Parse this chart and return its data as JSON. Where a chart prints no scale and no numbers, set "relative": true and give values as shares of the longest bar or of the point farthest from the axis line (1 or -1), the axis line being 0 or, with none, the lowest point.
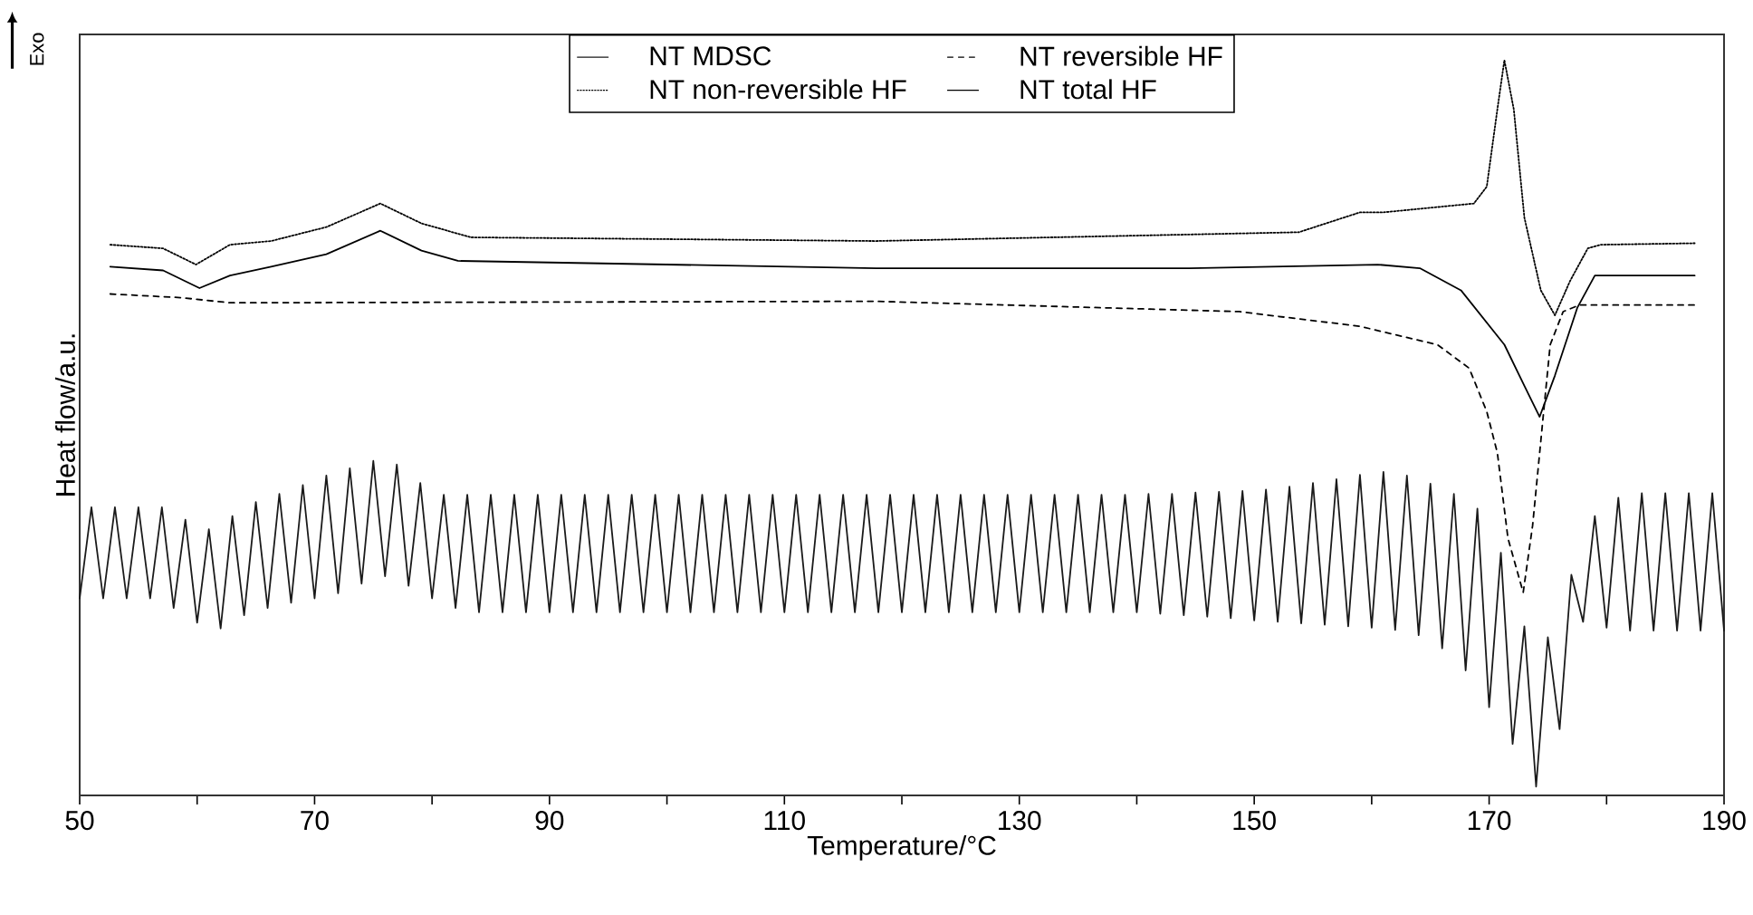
{
  "chart_data": {
    "type": "line",
    "relative": true,
    "xlabel": "Temperature/°C",
    "ylabel": "Heat flow/a.u.",
    "annotations": [
      "Exo"
    ],
    "xlim": [
      50,
      190
    ],
    "xticks": [
      50,
      {
        "value": 60,
        "label": null
      },
      70,
      {
        "value": 80,
        "label": null
      },
      90,
      {
        "value": 100,
        "label": null
      },
      110,
      {
        "value": 120,
        "label": null
      },
      130,
      {
        "value": 140,
        "label": null
      },
      150,
      {
        "value": 160,
        "label": null
      },
      170,
      {
        "value": 180,
        "label": null
      },
      190
    ],
    "legend": "top",
    "grid": false,
    "marker": "none",
    "series": [
      {
        "name": "NT MDSC",
        "color": "#1a1a1a",
        "line_style": "solid",
        "x": [
          50,
          51,
          52,
          53,
          54,
          55,
          56,
          57,
          58,
          59,
          60,
          61,
          62,
          63,
          64,
          65,
          66,
          67,
          68,
          69,
          70,
          71,
          72,
          73,
          74,
          75,
          76,
          77,
          78,
          79,
          80,
          81,
          82,
          83,
          84,
          85,
          86,
          87,
          88,
          89,
          90,
          91,
          92,
          93,
          94,
          95,
          96,
          97,
          98,
          99,
          100,
          101,
          102,
          103,
          104,
          105,
          106,
          107,
          108,
          109,
          110,
          111,
          112,
          113,
          114,
          115,
          116,
          117,
          118,
          119,
          120,
          121,
          122,
          123,
          124,
          125,
          126,
          127,
          128,
          129,
          130,
          131,
          132,
          133,
          134,
          135,
          136,
          137,
          138,
          139,
          140,
          141,
          142,
          143,
          144,
          145,
          146,
          147,
          148,
          149,
          150,
          151,
          152,
          153,
          154,
          155,
          156,
          157,
          158,
          159,
          160,
          161,
          162,
          163,
          164,
          165,
          166,
          167,
          168,
          169,
          170,
          171,
          172,
          173,
          174,
          175,
          176,
          177,
          178,
          179,
          180,
          181,
          182,
          183,
          184,
          185,
          186,
          187,
          188,
          189,
          190
        ],
        "values": [
          0.268,
          0.392,
          0.268,
          0.392,
          0.268,
          0.392,
          0.268,
          0.392,
          0.255,
          0.375,
          0.235,
          0.362,
          0.227,
          0.38,
          0.245,
          0.399,
          0.255,
          0.41,
          0.262,
          0.422,
          0.268,
          0.435,
          0.275,
          0.445,
          0.288,
          0.455,
          0.298,
          0.45,
          0.285,
          0.425,
          0.268,
          0.409,
          0.255,
          0.409,
          0.249,
          0.409,
          0.249,
          0.409,
          0.249,
          0.409,
          0.249,
          0.409,
          0.249,
          0.409,
          0.249,
          0.409,
          0.249,
          0.409,
          0.249,
          0.409,
          0.249,
          0.409,
          0.249,
          0.409,
          0.249,
          0.409,
          0.249,
          0.409,
          0.249,
          0.409,
          0.249,
          0.409,
          0.249,
          0.409,
          0.249,
          0.409,
          0.249,
          0.409,
          0.249,
          0.409,
          0.249,
          0.409,
          0.249,
          0.409,
          0.249,
          0.409,
          0.249,
          0.409,
          0.249,
          0.409,
          0.249,
          0.409,
          0.249,
          0.409,
          0.249,
          0.409,
          0.249,
          0.409,
          0.249,
          0.409,
          0.249,
          0.41,
          0.247,
          0.41,
          0.245,
          0.412,
          0.243,
          0.413,
          0.241,
          0.414,
          0.238,
          0.416,
          0.236,
          0.42,
          0.234,
          0.425,
          0.232,
          0.43,
          0.23,
          0.436,
          0.228,
          0.44,
          0.225,
          0.435,
          0.218,
          0.424,
          0.2,
          0.41,
          0.17,
          0.39,
          0.12,
          0.33,
          0.07,
          0.23,
          0.012,
          0.215,
          0.09,
          0.3,
          0.236,
          0.38,
          0.228,
          0.405,
          0.224,
          0.411,
          0.224,
          0.411,
          0.224,
          0.411,
          0.224,
          0.411,
          0.224
        ]
      },
      {
        "name": "NT reversible HF",
        "color": "#000000",
        "line_style": "dashed",
        "x": [
          52.6,
          58.6,
          62.8,
          117.8,
          148.7,
          159.0,
          165.6,
          168.3,
          169.8,
          170.7,
          171.6,
          172.9,
          173.7,
          174.6,
          175.2,
          176.3,
          177.7,
          187.5
        ],
        "values": [
          0.682,
          0.677,
          0.67,
          0.672,
          0.658,
          0.638,
          0.613,
          0.581,
          0.522,
          0.466,
          0.35,
          0.276,
          0.367,
          0.515,
          0.613,
          0.658,
          0.667,
          0.667
        ]
      },
      {
        "name": "NT non-reversible HF",
        "color": "#000000",
        "line_style": "dotted",
        "x": [
          52.6,
          57.1,
          59.9,
          62.8,
          66.3,
          71.0,
          75.6,
          79.1,
          83.3,
          117.8,
          153.8,
          159.0,
          161.0,
          168.7,
          169.8,
          170.7,
          171.3,
          172.1,
          173.0,
          174.4,
          175.6,
          176.9,
          178.4,
          179.5,
          187.5
        ],
        "values": [
          0.749,
          0.744,
          0.722,
          0.749,
          0.754,
          0.773,
          0.805,
          0.778,
          0.759,
          0.754,
          0.766,
          0.793,
          0.793,
          0.805,
          0.828,
          0.933,
          1.0,
          0.933,
          0.786,
          0.687,
          0.653,
          0.7,
          0.744,
          0.749,
          0.751
        ]
      },
      {
        "name": "NT total HF",
        "color": "#000000",
        "line_style": "solid",
        "x": [
          52.6,
          57.1,
          60.2,
          62.8,
          66.3,
          71.0,
          75.6,
          79.1,
          82.2,
          117.8,
          144.5,
          160.5,
          164.1,
          167.6,
          171.3,
          173.0,
          174.3,
          175.6,
          177.5,
          179.0,
          187.5
        ],
        "values": [
          0.719,
          0.714,
          0.69,
          0.707,
          0.719,
          0.736,
          0.768,
          0.741,
          0.727,
          0.717,
          0.717,
          0.722,
          0.717,
          0.687,
          0.613,
          0.557,
          0.515,
          0.571,
          0.663,
          0.707,
          0.707
        ]
      }
    ]
  }
}
